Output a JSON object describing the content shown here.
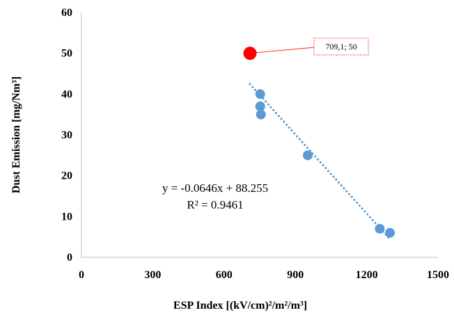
{
  "chart_data": {
    "type": "scatter",
    "xlabel": "ESP Index [(kV/cm)²/m²/m³]",
    "ylabel": "Dust Emission [mg/Nm³]",
    "xlim": [
      0,
      1500
    ],
    "ylim": [
      0,
      60
    ],
    "x_ticks": [
      "0",
      "300",
      "600",
      "900",
      "1200",
      "1500"
    ],
    "y_ticks": [
      "0",
      "10",
      "20",
      "30",
      "40",
      "50",
      "60"
    ],
    "grid": false,
    "series": [
      {
        "color": "#5B9BD5",
        "points": [
          {
            "x": 752,
            "y": 40
          },
          {
            "x": 752,
            "y": 37
          },
          {
            "x": 755,
            "y": 35
          },
          {
            "x": 952,
            "y": 25
          },
          {
            "x": 1255,
            "y": 7
          },
          {
            "x": 1298,
            "y": 6
          }
        ]
      },
      {
        "color": "#FF0000",
        "points": [
          {
            "x": 709.1,
            "y": 50
          }
        ]
      }
    ],
    "trendline": {
      "style": "dotted",
      "color": "#5B9BD5",
      "slope": -0.0646,
      "intercept": 88.255,
      "x_range": [
        709,
        1298
      ],
      "equation": "y = -0.0646x + 88.255",
      "r_squared": "R² = 0.9461"
    },
    "annotations": [
      {
        "text": "709,1; 50",
        "x": 709.1,
        "y": 50,
        "border_color": "#FF0000"
      }
    ]
  }
}
